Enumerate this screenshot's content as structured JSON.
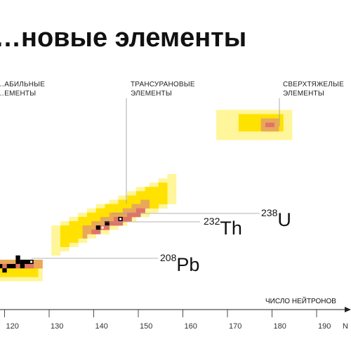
{
  "chart_data": {
    "type": "heatmap",
    "title": "…новые элементы",
    "xlabel": "ЧИСЛО НЕЙТРОНОВ",
    "xlabel_edge": "N",
    "xlim": [
      114,
      197
    ],
    "ylim": [
      76,
      121
    ],
    "x_ticks": [
      120,
      130,
      140,
      150,
      160,
      170,
      180,
      190
    ],
    "region_labels": [
      {
        "key": "stable",
        "lines": [
          "…АБИЛЬНЫЕ",
          "…ЕМЕНТЫ"
        ]
      },
      {
        "key": "transuranic",
        "lines": [
          "ТРАНСУРАНОВЫЕ",
          "ЭЛЕМЕНТЫ"
        ]
      },
      {
        "key": "superheavy",
        "lines": [
          "СВЕРХТЯЖЕЛЫЕ",
          "ЭЛЕМЕНТЫ"
        ]
      }
    ],
    "isotopes": [
      {
        "mass": "208",
        "symbol": "Pb",
        "N": 126,
        "Z": 82
      },
      {
        "mass": "232",
        "symbol": "Th",
        "N": 142,
        "Z": 90
      },
      {
        "mass": "238",
        "symbol": "U",
        "N": 146,
        "Z": 92
      }
    ],
    "bands": [
      {
        "name": "short-lived",
        "color": "#fff59a",
        "regions": [
          {
            "n_min": 114,
            "n_max": 128,
            "z_center": 80,
            "half": 2
          },
          {
            "n_min": 131,
            "n_max": 158,
            "z_center": 87,
            "half": 3,
            "slope": 0.45
          },
          {
            "n_min": 168,
            "n_max": 184,
            "z_center": 114,
            "half": 3
          }
        ]
      },
      {
        "name": "medium",
        "color": "#ffe200",
        "regions": [
          {
            "n_min": 115,
            "n_max": 127,
            "z_center": 80,
            "half": 1.2
          },
          {
            "n_min": 133,
            "n_max": 156,
            "z_center": 88,
            "half": 2,
            "slope": 0.45
          },
          {
            "n_min": 173,
            "n_max": 182,
            "z_center": 114,
            "half": 1.5
          }
        ]
      },
      {
        "name": "long-lived",
        "color": "#e9a85a",
        "regions": [
          {
            "n_min": 118,
            "n_max": 128,
            "z_center": 81,
            "half": 0.5
          },
          {
            "n_min": 138,
            "n_max": 152,
            "z_center": 89,
            "half": 0.8,
            "slope": 0.45
          },
          {
            "n_min": 178,
            "n_max": 181,
            "z_center": 114,
            "half": 0.6
          }
        ]
      },
      {
        "name": "very long-lived",
        "color": "#e07468",
        "regions": [
          {
            "n_min": 119,
            "n_max": 126,
            "z_center": 81,
            "half": 0.3
          },
          {
            "n_min": 140,
            "n_max": 151,
            "z_center": 89,
            "half": 0.3,
            "slope": 0.45
          },
          {
            "n_min": 179,
            "n_max": 180,
            "z_center": 114,
            "half": 0.2
          }
        ]
      }
    ],
    "stable_nuclides": [
      [
        115,
        80
      ],
      [
        116,
        80
      ],
      [
        117,
        80
      ],
      [
        118,
        80
      ],
      [
        119,
        81
      ],
      [
        120,
        80
      ],
      [
        121,
        81
      ],
      [
        122,
        81
      ],
      [
        123,
        82
      ],
      [
        124,
        82
      ],
      [
        125,
        82
      ],
      [
        126,
        82
      ],
      [
        123,
        83
      ],
      [
        124,
        81
      ],
      [
        141,
        90
      ],
      [
        143,
        91
      ],
      [
        146,
        92
      ]
    ],
    "white_nuclides": [
      [
        126,
        82
      ],
      [
        142,
        90
      ],
      [
        146,
        92
      ]
    ],
    "stable_color": "#000000"
  },
  "colors": {
    "background": "#ffffff",
    "guide": "#9a9a9a",
    "axis": "#222222"
  }
}
